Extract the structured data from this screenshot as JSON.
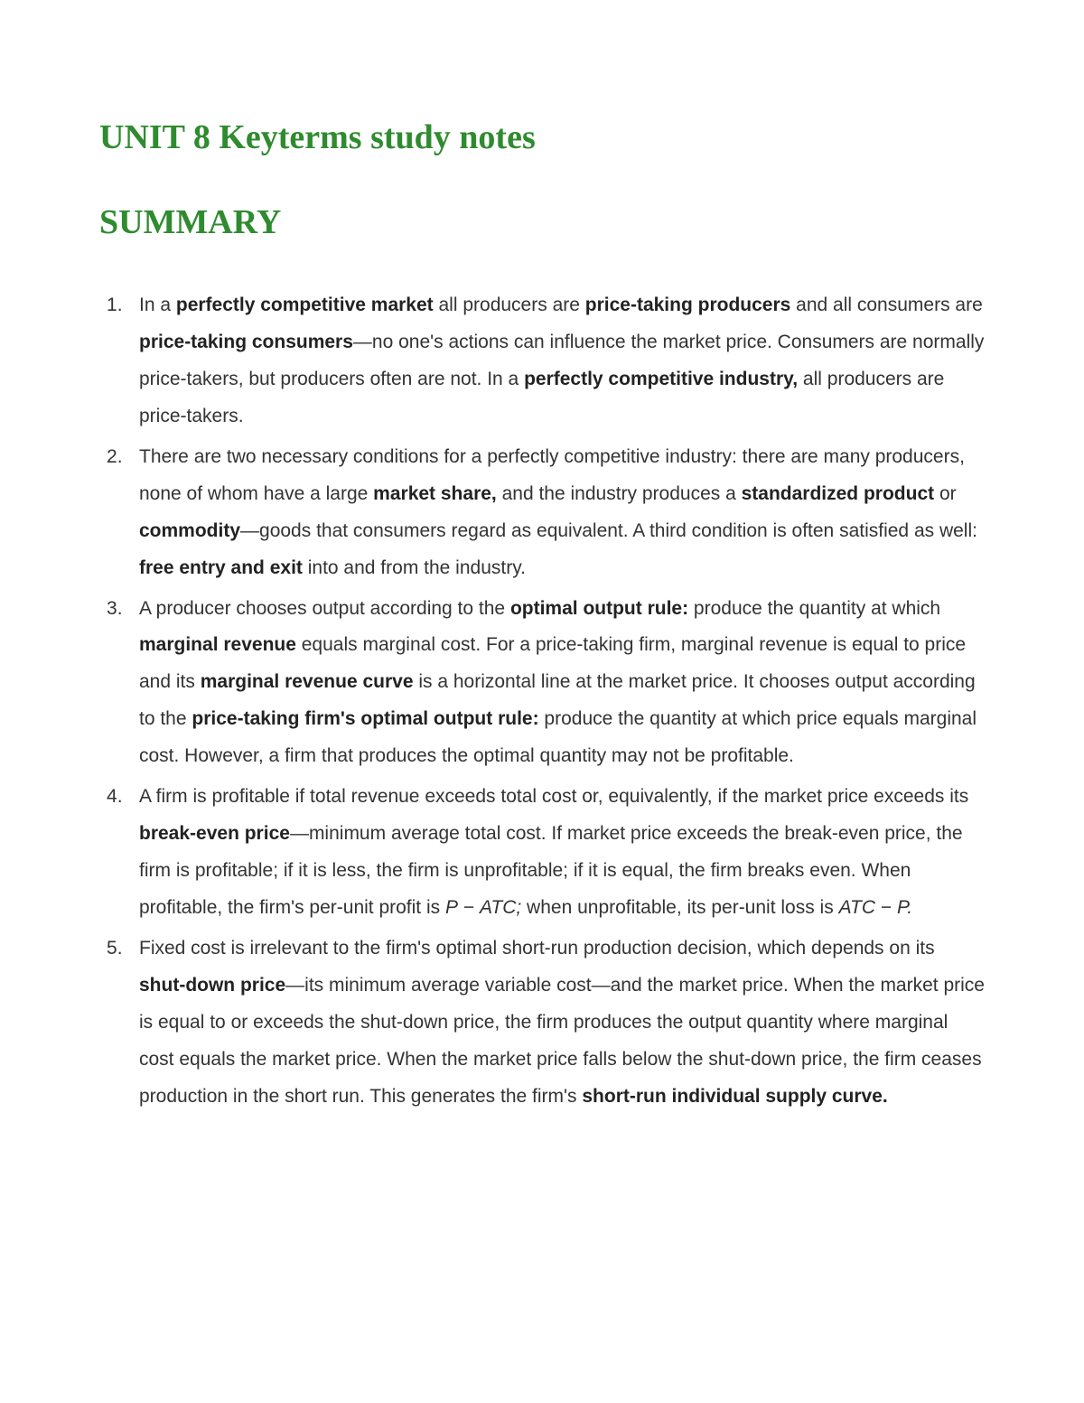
{
  "title": "UNIT 8 Keyterms study notes",
  "subtitle": "SUMMARY",
  "colors": {
    "heading_color": "#2f8b2f",
    "body_text_color": "#333333",
    "background_color": "#ffffff"
  },
  "typography": {
    "heading_font": "Georgia, serif",
    "body_font": "Arial, sans-serif",
    "title_fontsize": 38,
    "subtitle_fontsize": 38,
    "body_fontsize": 21,
    "line_height": 1.95
  },
  "items": [
    {
      "segments": [
        {
          "text": "In a ",
          "bold": false
        },
        {
          "text": "perfectly competitive market",
          "bold": true
        },
        {
          "text": " all producers are ",
          "bold": false
        },
        {
          "text": "price-taking producers",
          "bold": true
        },
        {
          "text": " and all consumers are ",
          "bold": false
        },
        {
          "text": "price-taking consumers",
          "bold": true
        },
        {
          "text": "—no one's actions can influence the market price. Consumers are normally price-takers, but producers often are not. In a ",
          "bold": false
        },
        {
          "text": "perfectly competitive industry,",
          "bold": true
        },
        {
          "text": " all producers are price-takers.",
          "bold": false
        }
      ]
    },
    {
      "segments": [
        {
          "text": "There are two necessary conditions for a perfectly competitive industry: there are many producers, none of whom have a large ",
          "bold": false
        },
        {
          "text": "market share,",
          "bold": true
        },
        {
          "text": " and the industry produces a ",
          "bold": false
        },
        {
          "text": "standardized product",
          "bold": true
        },
        {
          "text": " or ",
          "bold": false
        },
        {
          "text": "commodity",
          "bold": true
        },
        {
          "text": "—goods that consumers regard as equivalent. A third condition is often satisfied as well: ",
          "bold": false
        },
        {
          "text": "free entry and exit",
          "bold": true
        },
        {
          "text": " into and from the industry.",
          "bold": false
        }
      ]
    },
    {
      "segments": [
        {
          "text": "A producer chooses output according to the ",
          "bold": false
        },
        {
          "text": "optimal output rule:",
          "bold": true
        },
        {
          "text": " produce the quantity at which ",
          "bold": false
        },
        {
          "text": "marginal revenue",
          "bold": true
        },
        {
          "text": " equals marginal cost. For a price-taking firm, marginal revenue is equal to price and its ",
          "bold": false
        },
        {
          "text": "marginal revenue curve",
          "bold": true
        },
        {
          "text": " is a horizontal line at the market price. It chooses output according to the ",
          "bold": false
        },
        {
          "text": "price-taking firm's optimal output rule:",
          "bold": true
        },
        {
          "text": " produce the quantity at which price equals marginal cost. However, a firm that produces the optimal quantity may not be profitable.",
          "bold": false
        }
      ]
    },
    {
      "segments": [
        {
          "text": "A firm is profitable if total revenue exceeds total cost or, equivalently, if the market price exceeds its ",
          "bold": false
        },
        {
          "text": "break-even price",
          "bold": true
        },
        {
          "text": "—minimum average total cost. If market price exceeds the break-even price, the firm is profitable; if it is less, the firm is unprofitable; if it is equal, the firm breaks even. When profitable, the firm's per-unit profit is ",
          "bold": false
        },
        {
          "text": "P",
          "bold": false,
          "italic": true
        },
        {
          "text": " − ",
          "bold": false
        },
        {
          "text": "ATC;",
          "bold": false,
          "italic": true
        },
        {
          "text": " when unprofitable, its per-unit loss is ",
          "bold": false
        },
        {
          "text": "ATC",
          "bold": false,
          "italic": true
        },
        {
          "text": " − ",
          "bold": false
        },
        {
          "text": "P.",
          "bold": false,
          "italic": true
        }
      ]
    },
    {
      "segments": [
        {
          "text": "Fixed cost is irrelevant to the firm's optimal short-run production decision, which depends on its ",
          "bold": false
        },
        {
          "text": "shut-down price",
          "bold": true
        },
        {
          "text": "—its minimum average variable cost—and the market price. When the market price is equal to or exceeds the shut-down price, the firm produces the output quantity where marginal cost equals the market price. When the market price falls below the shut-down price, the firm ceases production in the short run. This generates the firm's ",
          "bold": false
        },
        {
          "text": "short-run individual supply curve.",
          "bold": true
        }
      ]
    }
  ]
}
